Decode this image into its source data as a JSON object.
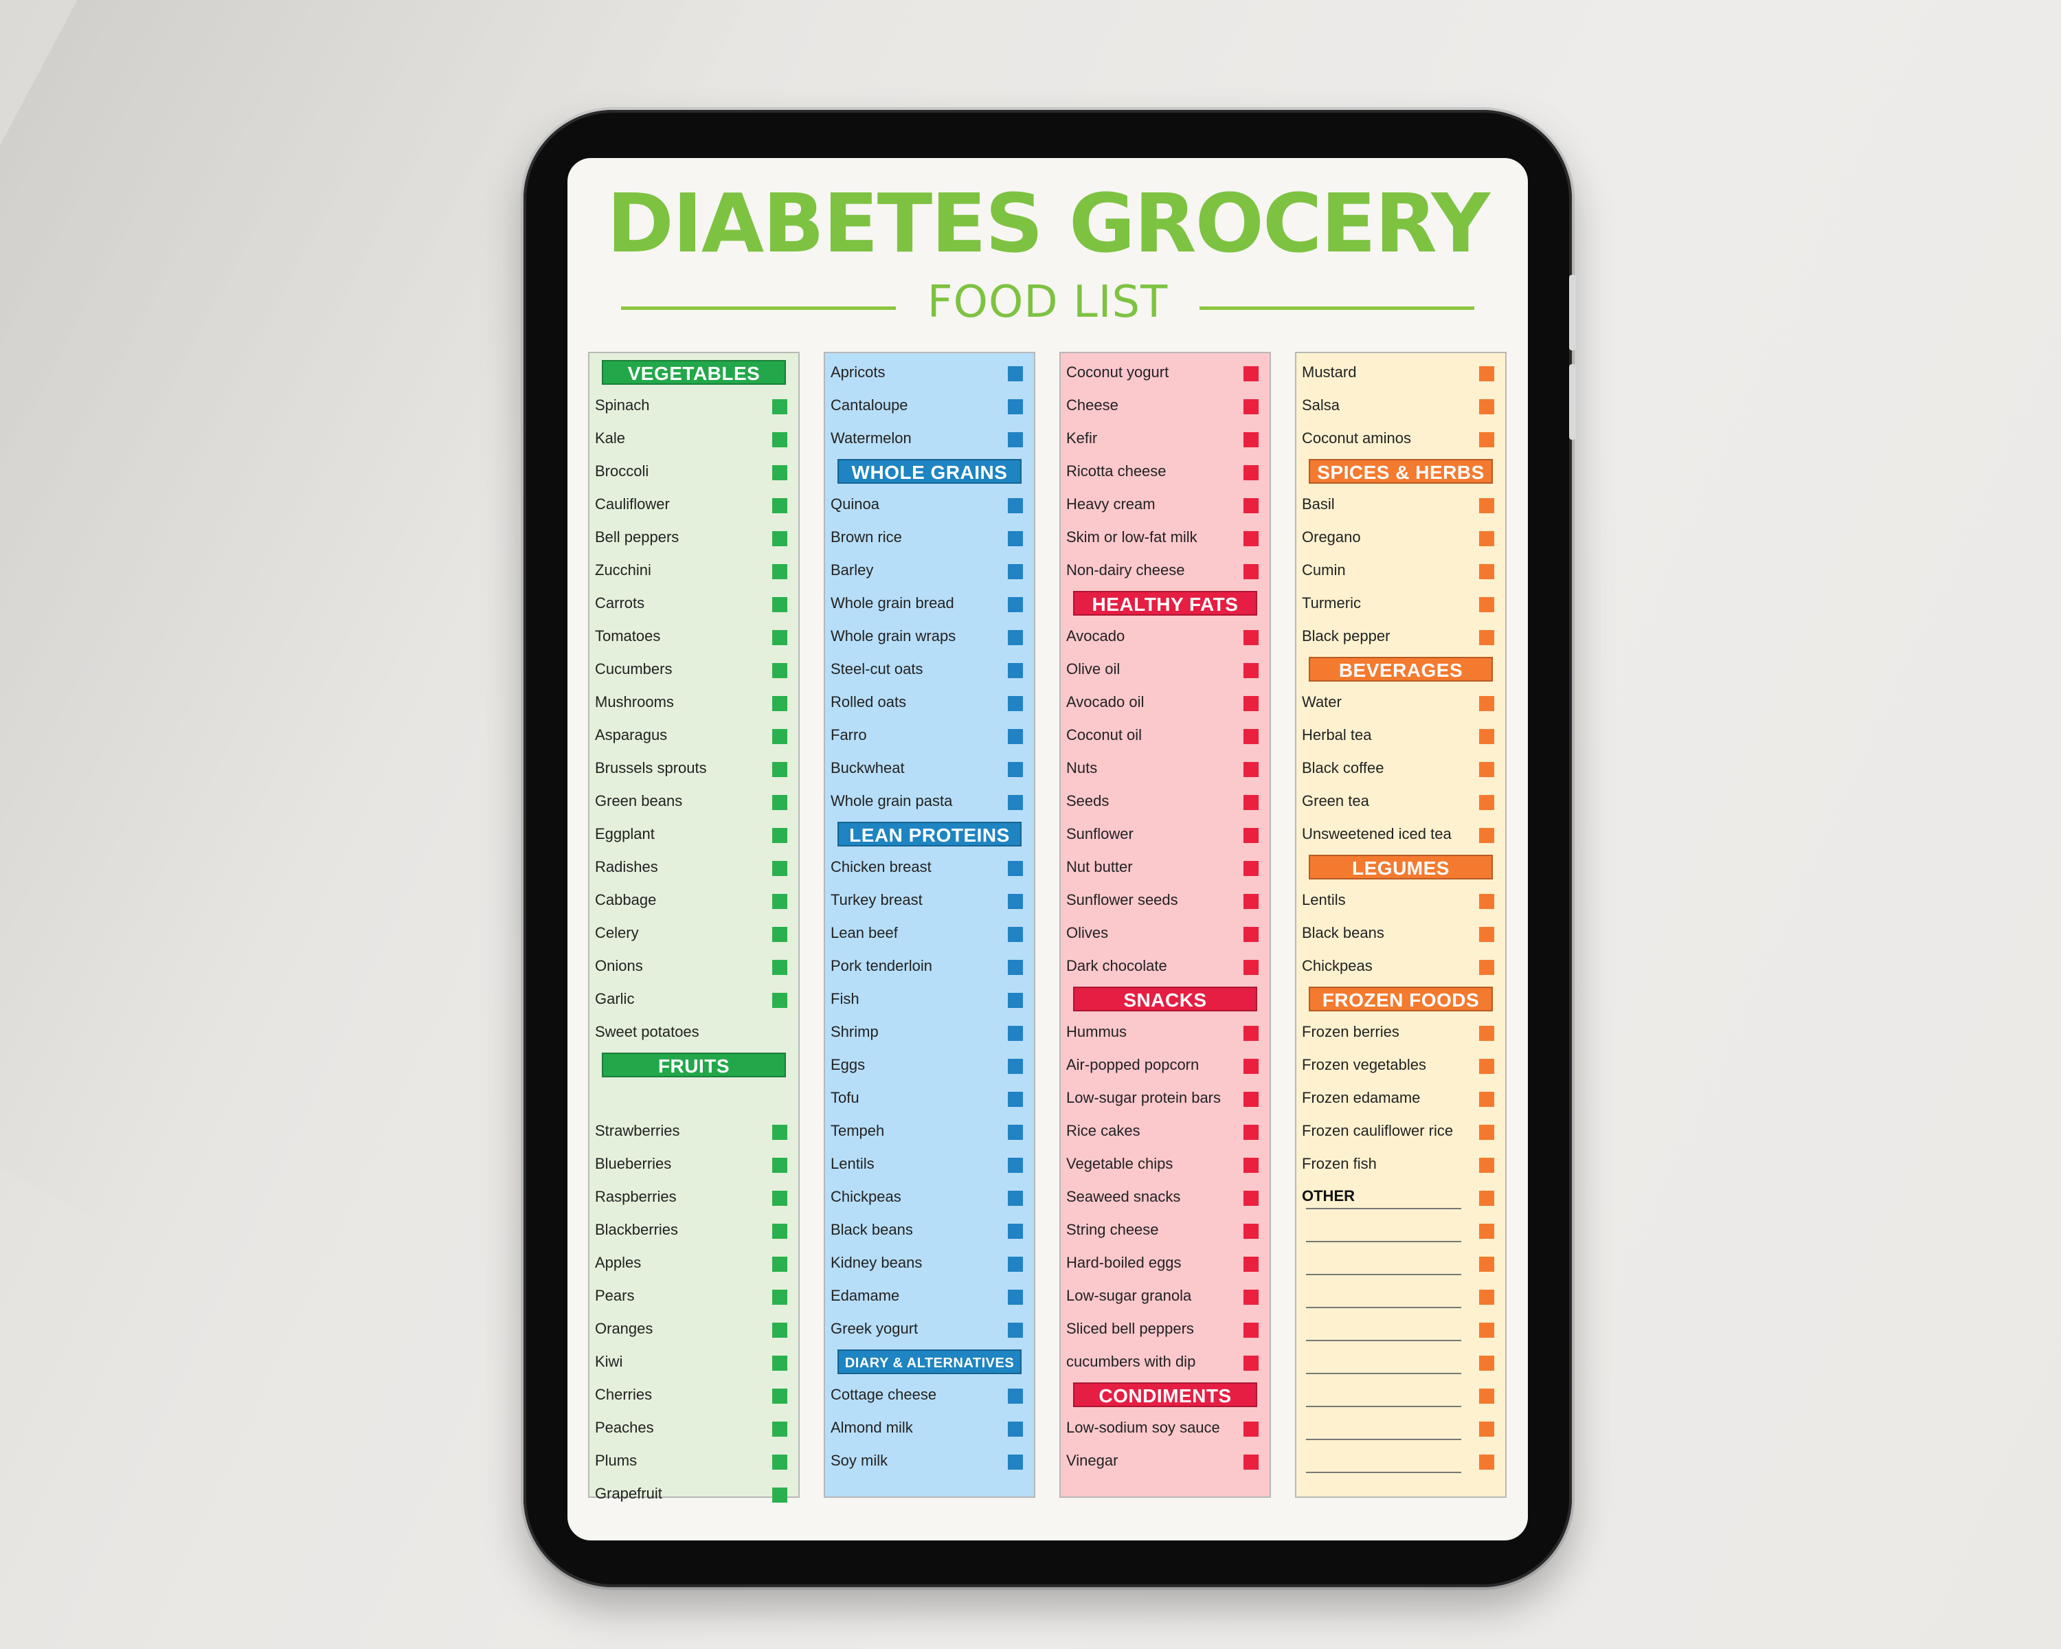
{
  "title": "DIABETES GROCERY",
  "subtitle": "FOOD LIST",
  "colors": {
    "title_green": "#7ec242",
    "vegetables_green": "#22a84a",
    "blue": "#1e84c2",
    "red": "#e61e43",
    "orange": "#f47a2f",
    "col1_bg": "#e4f0db",
    "col2_bg": "#b7def8",
    "col3_bg": "#fbc8cc",
    "col4_bg": "#fdf1cf"
  },
  "columns": [
    {
      "id": "col-1",
      "entries": [
        {
          "type": "header",
          "label": "VEGETABLES"
        },
        {
          "type": "item",
          "label": "Spinach"
        },
        {
          "type": "item",
          "label": "Kale"
        },
        {
          "type": "item",
          "label": "Broccoli"
        },
        {
          "type": "item",
          "label": "Cauliflower"
        },
        {
          "type": "item",
          "label": "Bell peppers"
        },
        {
          "type": "item",
          "label": "Zucchini"
        },
        {
          "type": "item",
          "label": "Carrots"
        },
        {
          "type": "item",
          "label": "Tomatoes"
        },
        {
          "type": "item",
          "label": "Cucumbers"
        },
        {
          "type": "item",
          "label": "Mushrooms"
        },
        {
          "type": "item",
          "label": "Asparagus"
        },
        {
          "type": "item",
          "label": "Brussels sprouts"
        },
        {
          "type": "item",
          "label": "Green beans"
        },
        {
          "type": "item",
          "label": "Eggplant"
        },
        {
          "type": "item",
          "label": "Radishes"
        },
        {
          "type": "item",
          "label": "Cabbage"
        },
        {
          "type": "item",
          "label": "Celery"
        },
        {
          "type": "item",
          "label": "Onions"
        },
        {
          "type": "item",
          "label": "Garlic"
        },
        {
          "type": "item",
          "label": "Sweet potatoes",
          "nobox": true
        },
        {
          "type": "header",
          "label": "FRUITS"
        },
        {
          "type": "spacer"
        },
        {
          "type": "item",
          "label": "Strawberries"
        },
        {
          "type": "item",
          "label": "Blueberries"
        },
        {
          "type": "item",
          "label": "Raspberries"
        },
        {
          "type": "item",
          "label": "Blackberries"
        },
        {
          "type": "item",
          "label": "Apples"
        },
        {
          "type": "item",
          "label": "Pears"
        },
        {
          "type": "item",
          "label": "Oranges"
        },
        {
          "type": "item",
          "label": "Kiwi"
        },
        {
          "type": "item",
          "label": "Cherries"
        },
        {
          "type": "item",
          "label": "Peaches"
        },
        {
          "type": "item",
          "label": "Plums"
        },
        {
          "type": "item",
          "label": "Grapefruit"
        }
      ]
    },
    {
      "id": "col-2",
      "entries": [
        {
          "type": "item",
          "label": "Apricots"
        },
        {
          "type": "item",
          "label": "Cantaloupe"
        },
        {
          "type": "item",
          "label": "Watermelon"
        },
        {
          "type": "header",
          "label": "WHOLE GRAINS"
        },
        {
          "type": "item",
          "label": "Quinoa"
        },
        {
          "type": "item",
          "label": "Brown rice"
        },
        {
          "type": "item",
          "label": "Barley"
        },
        {
          "type": "item",
          "label": "Whole grain bread"
        },
        {
          "type": "item",
          "label": "Whole grain wraps"
        },
        {
          "type": "item",
          "label": "Steel-cut oats"
        },
        {
          "type": "item",
          "label": "Rolled oats"
        },
        {
          "type": "item",
          "label": "Farro"
        },
        {
          "type": "item",
          "label": "Buckwheat"
        },
        {
          "type": "item",
          "label": "Whole grain pasta"
        },
        {
          "type": "header",
          "label": "LEAN PROTEINS"
        },
        {
          "type": "item",
          "label": "Chicken breast"
        },
        {
          "type": "item",
          "label": "Turkey breast"
        },
        {
          "type": "item",
          "label": "Lean beef"
        },
        {
          "type": "item",
          "label": "Pork tenderloin"
        },
        {
          "type": "item",
          "label": "Fish"
        },
        {
          "type": "item",
          "label": "Shrimp"
        },
        {
          "type": "item",
          "label": "Eggs"
        },
        {
          "type": "item",
          "label": "Tofu"
        },
        {
          "type": "item",
          "label": "Tempeh"
        },
        {
          "type": "item",
          "label": "Lentils"
        },
        {
          "type": "item",
          "label": "Chickpeas"
        },
        {
          "type": "item",
          "label": "Black beans"
        },
        {
          "type": "item",
          "label": "Kidney beans"
        },
        {
          "type": "item",
          "label": "Edamame"
        },
        {
          "type": "item",
          "label": "Greek yogurt"
        },
        {
          "type": "header",
          "label": "DIARY & ALTERNATIVES",
          "small": true
        },
        {
          "type": "item",
          "label": "Cottage cheese"
        },
        {
          "type": "item",
          "label": "Almond milk"
        },
        {
          "type": "item",
          "label": "Soy milk"
        }
      ]
    },
    {
      "id": "col-3",
      "entries": [
        {
          "type": "item",
          "label": "Coconut yogurt"
        },
        {
          "type": "item",
          "label": "Cheese"
        },
        {
          "type": "item",
          "label": "Kefir"
        },
        {
          "type": "item",
          "label": "Ricotta cheese"
        },
        {
          "type": "item",
          "label": "Heavy cream"
        },
        {
          "type": "item",
          "label": "Skim or low-fat milk"
        },
        {
          "type": "item",
          "label": "Non-dairy cheese"
        },
        {
          "type": "header",
          "label": "HEALTHY FATS"
        },
        {
          "type": "item",
          "label": "Avocado"
        },
        {
          "type": "item",
          "label": "Olive oil"
        },
        {
          "type": "item",
          "label": "Avocado oil"
        },
        {
          "type": "item",
          "label": "Coconut oil"
        },
        {
          "type": "item",
          "label": "Nuts"
        },
        {
          "type": "item",
          "label": "Seeds"
        },
        {
          "type": "item",
          "label": "Sunflower"
        },
        {
          "type": "item",
          "label": "Nut butter"
        },
        {
          "type": "item",
          "label": "Sunflower seeds"
        },
        {
          "type": "item",
          "label": "Olives"
        },
        {
          "type": "item",
          "label": "Dark chocolate"
        },
        {
          "type": "header",
          "label": "SNACKS"
        },
        {
          "type": "item",
          "label": "Hummus"
        },
        {
          "type": "item",
          "label": "Air-popped popcorn"
        },
        {
          "type": "item",
          "label": "Low-sugar protein bars"
        },
        {
          "type": "item",
          "label": "Rice cakes"
        },
        {
          "type": "item",
          "label": "Vegetable chips"
        },
        {
          "type": "item",
          "label": "Seaweed snacks"
        },
        {
          "type": "item",
          "label": "String cheese"
        },
        {
          "type": "item",
          "label": "Hard-boiled eggs"
        },
        {
          "type": "item",
          "label": "Low-sugar granola"
        },
        {
          "type": "item",
          "label": "Sliced bell peppers"
        },
        {
          "type": "item",
          "label": "cucumbers with dip"
        },
        {
          "type": "header",
          "label": "CONDIMENTS"
        },
        {
          "type": "item",
          "label": "Low-sodium soy sauce"
        },
        {
          "type": "item",
          "label": "Vinegar"
        }
      ]
    },
    {
      "id": "col-4",
      "entries": [
        {
          "type": "item",
          "label": "Mustard"
        },
        {
          "type": "item",
          "label": "Salsa"
        },
        {
          "type": "item",
          "label": "Coconut aminos"
        },
        {
          "type": "header",
          "label": "SPICES & HERBS"
        },
        {
          "type": "item",
          "label": "Basil"
        },
        {
          "type": "item",
          "label": "Oregano"
        },
        {
          "type": "item",
          "label": "Cumin"
        },
        {
          "type": "item",
          "label": "Turmeric"
        },
        {
          "type": "item",
          "label": "Black pepper"
        },
        {
          "type": "header",
          "label": "BEVERAGES"
        },
        {
          "type": "item",
          "label": "Water"
        },
        {
          "type": "item",
          "label": "Herbal tea"
        },
        {
          "type": "item",
          "label": "Black coffee"
        },
        {
          "type": "item",
          "label": "Green tea"
        },
        {
          "type": "item",
          "label": "Unsweetened iced tea"
        },
        {
          "type": "header",
          "label": "LEGUMES"
        },
        {
          "type": "item",
          "label": "Lentils"
        },
        {
          "type": "item",
          "label": "Black beans"
        },
        {
          "type": "item",
          "label": "Chickpeas"
        },
        {
          "type": "header",
          "label": "FROZEN FOODS"
        },
        {
          "type": "item",
          "label": "Frozen berries"
        },
        {
          "type": "item",
          "label": "Frozen vegetables"
        },
        {
          "type": "item",
          "label": "Frozen edamame"
        },
        {
          "type": "item",
          "label": "Frozen cauliflower rice"
        },
        {
          "type": "item",
          "label": "Frozen fish"
        },
        {
          "type": "other",
          "label": "OTHER"
        },
        {
          "type": "blank"
        },
        {
          "type": "blank"
        },
        {
          "type": "blank"
        },
        {
          "type": "blank"
        },
        {
          "type": "blank"
        },
        {
          "type": "blank"
        },
        {
          "type": "blank"
        },
        {
          "type": "blank"
        }
      ]
    }
  ]
}
